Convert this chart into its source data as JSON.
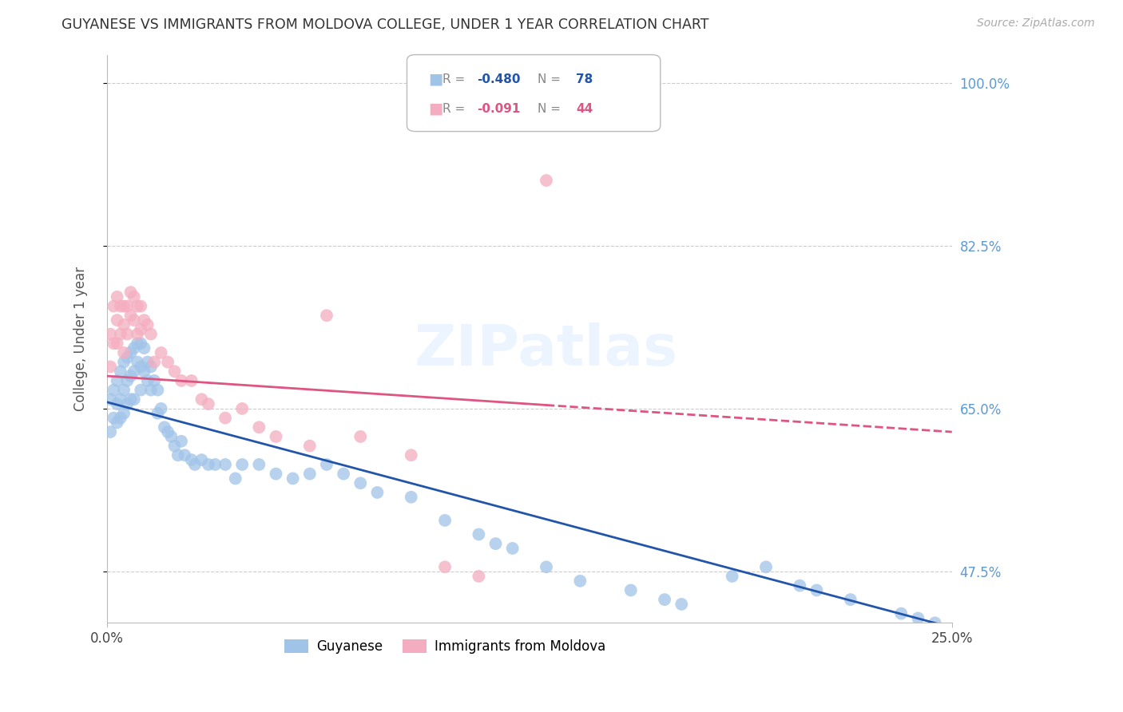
{
  "title": "GUYANESE VS IMMIGRANTS FROM MOLDOVA COLLEGE, UNDER 1 YEAR CORRELATION CHART",
  "source": "Source: ZipAtlas.com",
  "ylabel_label": "College, Under 1 year",
  "xlim": [
    0.0,
    0.25
  ],
  "ylim": [
    0.42,
    1.03
  ],
  "yticks": [
    0.475,
    0.65,
    0.825,
    1.0
  ],
  "ytick_labels": [
    "47.5%",
    "65.0%",
    "82.5%",
    "100.0%"
  ],
  "xticks": [
    0.0,
    0.25
  ],
  "xtick_labels": [
    "0.0%",
    "25.0%"
  ],
  "watermark": "ZIPatlas",
  "background_color": "#ffffff",
  "grid_color": "#cccccc",
  "right_tick_color": "#5b9bd5",
  "guyanese_color": "#a0c4e8",
  "moldova_color": "#f4adc0",
  "guyanese_line_color": "#2255aa",
  "moldova_line_color": "#dd5580",
  "guyanese_R": "-0.480",
  "guyanese_N": "78",
  "moldova_R": "-0.091",
  "moldova_N": "44",
  "guyanese_x": [
    0.001,
    0.001,
    0.002,
    0.002,
    0.003,
    0.003,
    0.003,
    0.004,
    0.004,
    0.004,
    0.005,
    0.005,
    0.005,
    0.006,
    0.006,
    0.006,
    0.007,
    0.007,
    0.007,
    0.008,
    0.008,
    0.008,
    0.009,
    0.009,
    0.01,
    0.01,
    0.01,
    0.011,
    0.011,
    0.012,
    0.012,
    0.013,
    0.013,
    0.014,
    0.015,
    0.015,
    0.016,
    0.017,
    0.018,
    0.019,
    0.02,
    0.021,
    0.022,
    0.023,
    0.025,
    0.026,
    0.028,
    0.03,
    0.032,
    0.035,
    0.038,
    0.04,
    0.045,
    0.05,
    0.055,
    0.06,
    0.065,
    0.07,
    0.075,
    0.08,
    0.09,
    0.1,
    0.11,
    0.115,
    0.12,
    0.13,
    0.14,
    0.155,
    0.165,
    0.17,
    0.185,
    0.195,
    0.205,
    0.21,
    0.22,
    0.235,
    0.24,
    0.245
  ],
  "guyanese_y": [
    0.66,
    0.625,
    0.67,
    0.64,
    0.68,
    0.655,
    0.635,
    0.69,
    0.66,
    0.64,
    0.7,
    0.67,
    0.645,
    0.705,
    0.68,
    0.655,
    0.71,
    0.685,
    0.66,
    0.715,
    0.69,
    0.66,
    0.72,
    0.7,
    0.72,
    0.695,
    0.67,
    0.715,
    0.69,
    0.7,
    0.68,
    0.695,
    0.67,
    0.68,
    0.67,
    0.645,
    0.65,
    0.63,
    0.625,
    0.62,
    0.61,
    0.6,
    0.615,
    0.6,
    0.595,
    0.59,
    0.595,
    0.59,
    0.59,
    0.59,
    0.575,
    0.59,
    0.59,
    0.58,
    0.575,
    0.58,
    0.59,
    0.58,
    0.57,
    0.56,
    0.555,
    0.53,
    0.515,
    0.505,
    0.5,
    0.48,
    0.465,
    0.455,
    0.445,
    0.44,
    0.47,
    0.48,
    0.46,
    0.455,
    0.445,
    0.43,
    0.425,
    0.42
  ],
  "moldova_x": [
    0.001,
    0.001,
    0.002,
    0.002,
    0.003,
    0.003,
    0.003,
    0.004,
    0.004,
    0.005,
    0.005,
    0.005,
    0.006,
    0.006,
    0.007,
    0.007,
    0.008,
    0.008,
    0.009,
    0.009,
    0.01,
    0.01,
    0.011,
    0.012,
    0.013,
    0.014,
    0.016,
    0.018,
    0.02,
    0.022,
    0.025,
    0.028,
    0.03,
    0.035,
    0.04,
    0.045,
    0.05,
    0.06,
    0.065,
    0.075,
    0.09,
    0.1,
    0.11,
    0.13
  ],
  "moldova_y": [
    0.695,
    0.73,
    0.76,
    0.72,
    0.77,
    0.745,
    0.72,
    0.76,
    0.73,
    0.76,
    0.74,
    0.71,
    0.76,
    0.73,
    0.775,
    0.75,
    0.77,
    0.745,
    0.76,
    0.73,
    0.76,
    0.735,
    0.745,
    0.74,
    0.73,
    0.7,
    0.71,
    0.7,
    0.69,
    0.68,
    0.68,
    0.66,
    0.655,
    0.64,
    0.65,
    0.63,
    0.62,
    0.61,
    0.75,
    0.62,
    0.6,
    0.48,
    0.47,
    0.895
  ]
}
